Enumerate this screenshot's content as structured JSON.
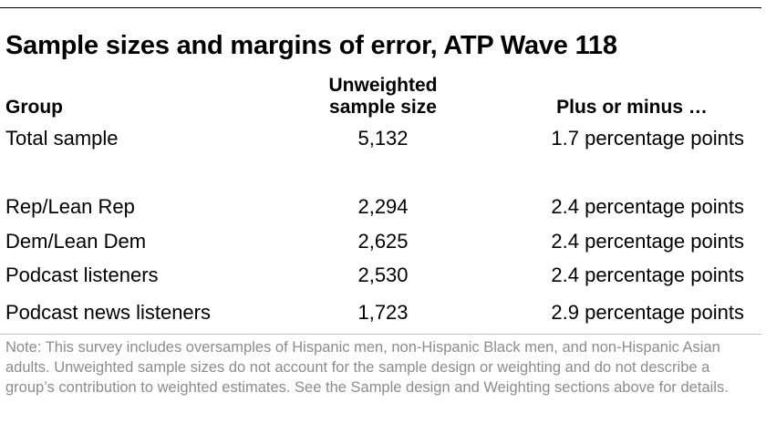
{
  "title": "Sample sizes and margins of error, ATP Wave 118",
  "headers": {
    "group": "Group",
    "sample_line1": "Unweighted",
    "sample_line2": "sample size",
    "moe": "Plus or minus …"
  },
  "rows": [
    {
      "group": "Total sample",
      "n": "5,132",
      "moe": "1.7 percentage points"
    },
    {
      "group": "Rep/Lean Rep",
      "n": "2,294",
      "moe": "2.4 percentage points"
    },
    {
      "group": "Dem/Lean Dem",
      "n": "2,625",
      "moe": "2.4 percentage points"
    },
    {
      "group": "Podcast listeners",
      "n": "2,530",
      "moe": "2.4 percentage points"
    },
    {
      "group": "Podcast news listeners",
      "n": "1,723",
      "moe": "2.9 percentage points"
    }
  ],
  "note": "Note: This survey includes oversamples of Hispanic men, non-Hispanic Black men, and non-Hispanic Asian adults. Unweighted sample sizes do not account for the sample design or weighting and do not describe a group’s contribution to weighted estimates. See the Sample design and Weighting sections above for details.",
  "colors": {
    "text": "#000000",
    "note": "#8c8c8c",
    "rule": "#bfbfbf"
  }
}
